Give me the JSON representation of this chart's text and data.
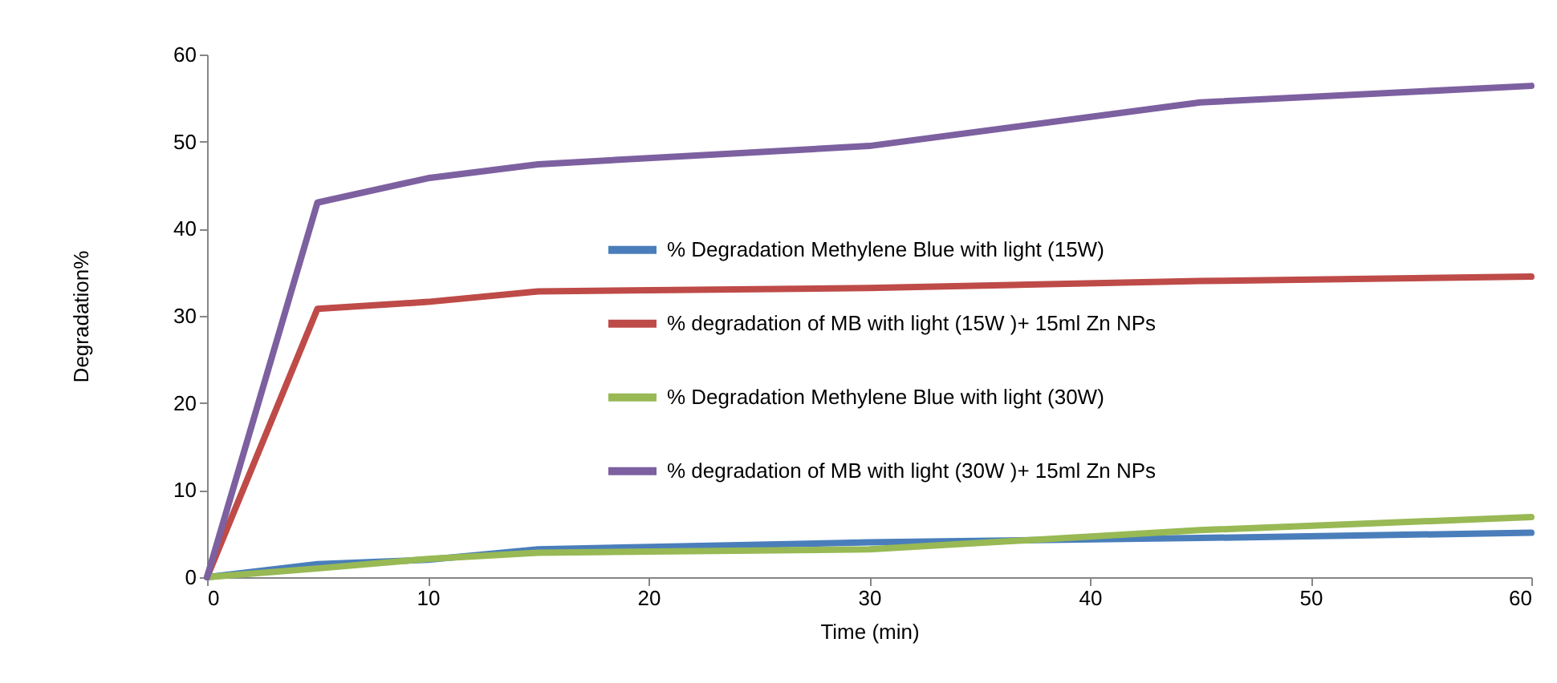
{
  "chart_data": {
    "type": "line",
    "xlabel": "Time (min)",
    "ylabel": "Degradation%",
    "x": [
      0,
      5,
      10,
      15,
      30,
      45,
      60
    ],
    "series": [
      {
        "name": "% Degradation  Methylene Blue  with light (15W)",
        "color": "#4a7ebb",
        "values": [
          0,
          1.5,
          2,
          3.2,
          4,
          4.5,
          5.1
        ]
      },
      {
        "name": "% degradation of MB with  light (15W )+ 15ml Zn NPs",
        "color": "#be4b48",
        "values": [
          0,
          30.8,
          31.6,
          32.8,
          33.2,
          34,
          34.5
        ]
      },
      {
        "name": "% Degradation  Methylene Blue  with light (30W)",
        "color": "#98b954",
        "values": [
          0,
          1,
          2.1,
          2.8,
          3.2,
          5.4,
          6.9
        ]
      },
      {
        "name": "% degradation of MB with  light (30W )+ 15ml Zn NPs",
        "color": "#7d60a0",
        "values": [
          0,
          43,
          45.8,
          47.4,
          49.5,
          54.5,
          56.4
        ]
      }
    ],
    "xlim": [
      0,
      60
    ],
    "xticks": [
      0,
      10,
      20,
      30,
      40,
      50,
      60
    ],
    "ylim": [
      0,
      60
    ],
    "yticks": [
      0,
      10,
      20,
      30,
      40,
      50,
      60
    ],
    "grid": false,
    "legend": "right",
    "marker": "none",
    "line_style": "solid"
  }
}
